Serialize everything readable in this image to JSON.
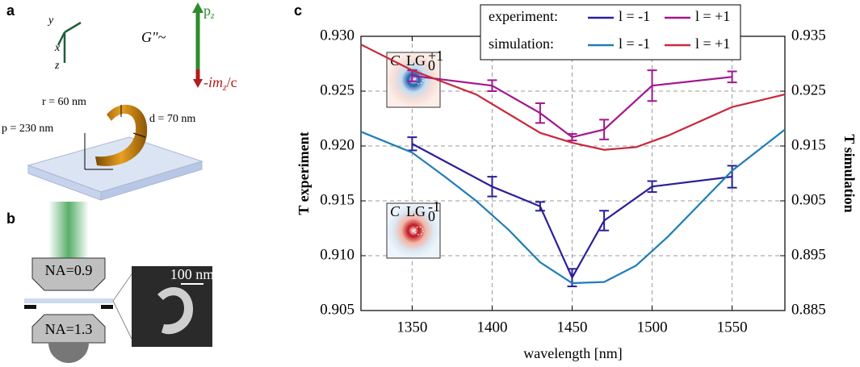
{
  "panel_a": {
    "label": "a",
    "axes": [
      "y",
      "x",
      "z"
    ],
    "g_label": "G\"~",
    "pz": {
      "base": "p",
      "sub": "z"
    },
    "m": {
      "pre": "-im",
      "sub": "z",
      "post": "/c"
    },
    "dims": [
      "r = 60 nm",
      "p = 230 nm",
      "d = 70 nm"
    ]
  },
  "panel_b": {
    "label": "b",
    "na": [
      "NA=0.9",
      "NA=1.3"
    ],
    "scale": "100 nm"
  },
  "chart_data": {
    "type": "line",
    "panel_label": "c",
    "x_label": "wavelength [nm]",
    "y_label": "T experiment",
    "y2_label": "T simulation",
    "xlim": [
      1318,
      1583
    ],
    "xticks": [
      1350,
      1400,
      1450,
      1500,
      1550
    ],
    "ylim": [
      0.905,
      0.93
    ],
    "yticks": [
      0.905,
      {
        "value": 0.91,
        "label": "0.910"
      },
      0.915,
      {
        "value": 0.92,
        "label": "0.920"
      },
      0.925,
      {
        "value": 0.93,
        "label": "0.930"
      }
    ],
    "y2lim": [
      0.885,
      0.935
    ],
    "y2ticks": [
      0.885,
      0.895,
      0.905,
      0.915,
      0.925,
      0.935
    ],
    "grid": true,
    "legend_groups": [
      "experiment:",
      "simulation:"
    ],
    "series": [
      {
        "name": "l = -1",
        "color": "#2a1f9a",
        "x": [
          1350,
          1400,
          1430,
          1450,
          1470,
          1500,
          1550
        ],
        "values": [
          0.9202,
          0.9163,
          0.9145,
          0.908,
          0.9132,
          0.9163,
          0.9172
        ],
        "errors": [
          0.0006,
          0.0009,
          0.0004,
          0.0008,
          0.0009,
          0.0005,
          0.001
        ]
      },
      {
        "name": "l = +1",
        "color": "#a3168e",
        "x": [
          1350,
          1400,
          1430,
          1450,
          1470,
          1500,
          1550
        ],
        "values": [
          0.9264,
          0.9255,
          0.923,
          0.9208,
          0.9215,
          0.9255,
          0.9263
        ],
        "errors": [
          0.0005,
          0.0005,
          0.0009,
          0.0003,
          0.0009,
          0.0014,
          0.0005
        ]
      },
      {
        "name": "l = -1",
        "color": "#1f7db8",
        "axis": "y2",
        "x": [
          1318,
          1350,
          1370,
          1390,
          1410,
          1430,
          1450,
          1470,
          1490,
          1510,
          1530,
          1550,
          1583
        ],
        "values": [
          0.9176,
          0.9138,
          0.9095,
          0.905,
          0.8998,
          0.8938,
          0.89,
          0.8902,
          0.8932,
          0.8985,
          0.9045,
          0.9105,
          0.918
        ]
      },
      {
        "name": "l = +1",
        "color": "#c9283a",
        "axis": "y2",
        "x": [
          1318,
          1350,
          1390,
          1430,
          1450,
          1470,
          1490,
          1510,
          1550,
          1583
        ],
        "values": [
          0.9335,
          0.9288,
          0.9244,
          0.9174,
          0.9156,
          0.9143,
          0.9148,
          0.9169,
          0.9221,
          0.9244
        ]
      }
    ],
    "insets": [
      {
        "label": "C",
        "mode": "LG",
        "sub": "0",
        "sup": "+1"
      },
      {
        "label": "C",
        "mode": "LG",
        "sub": "0",
        "sup": "-1"
      }
    ]
  }
}
